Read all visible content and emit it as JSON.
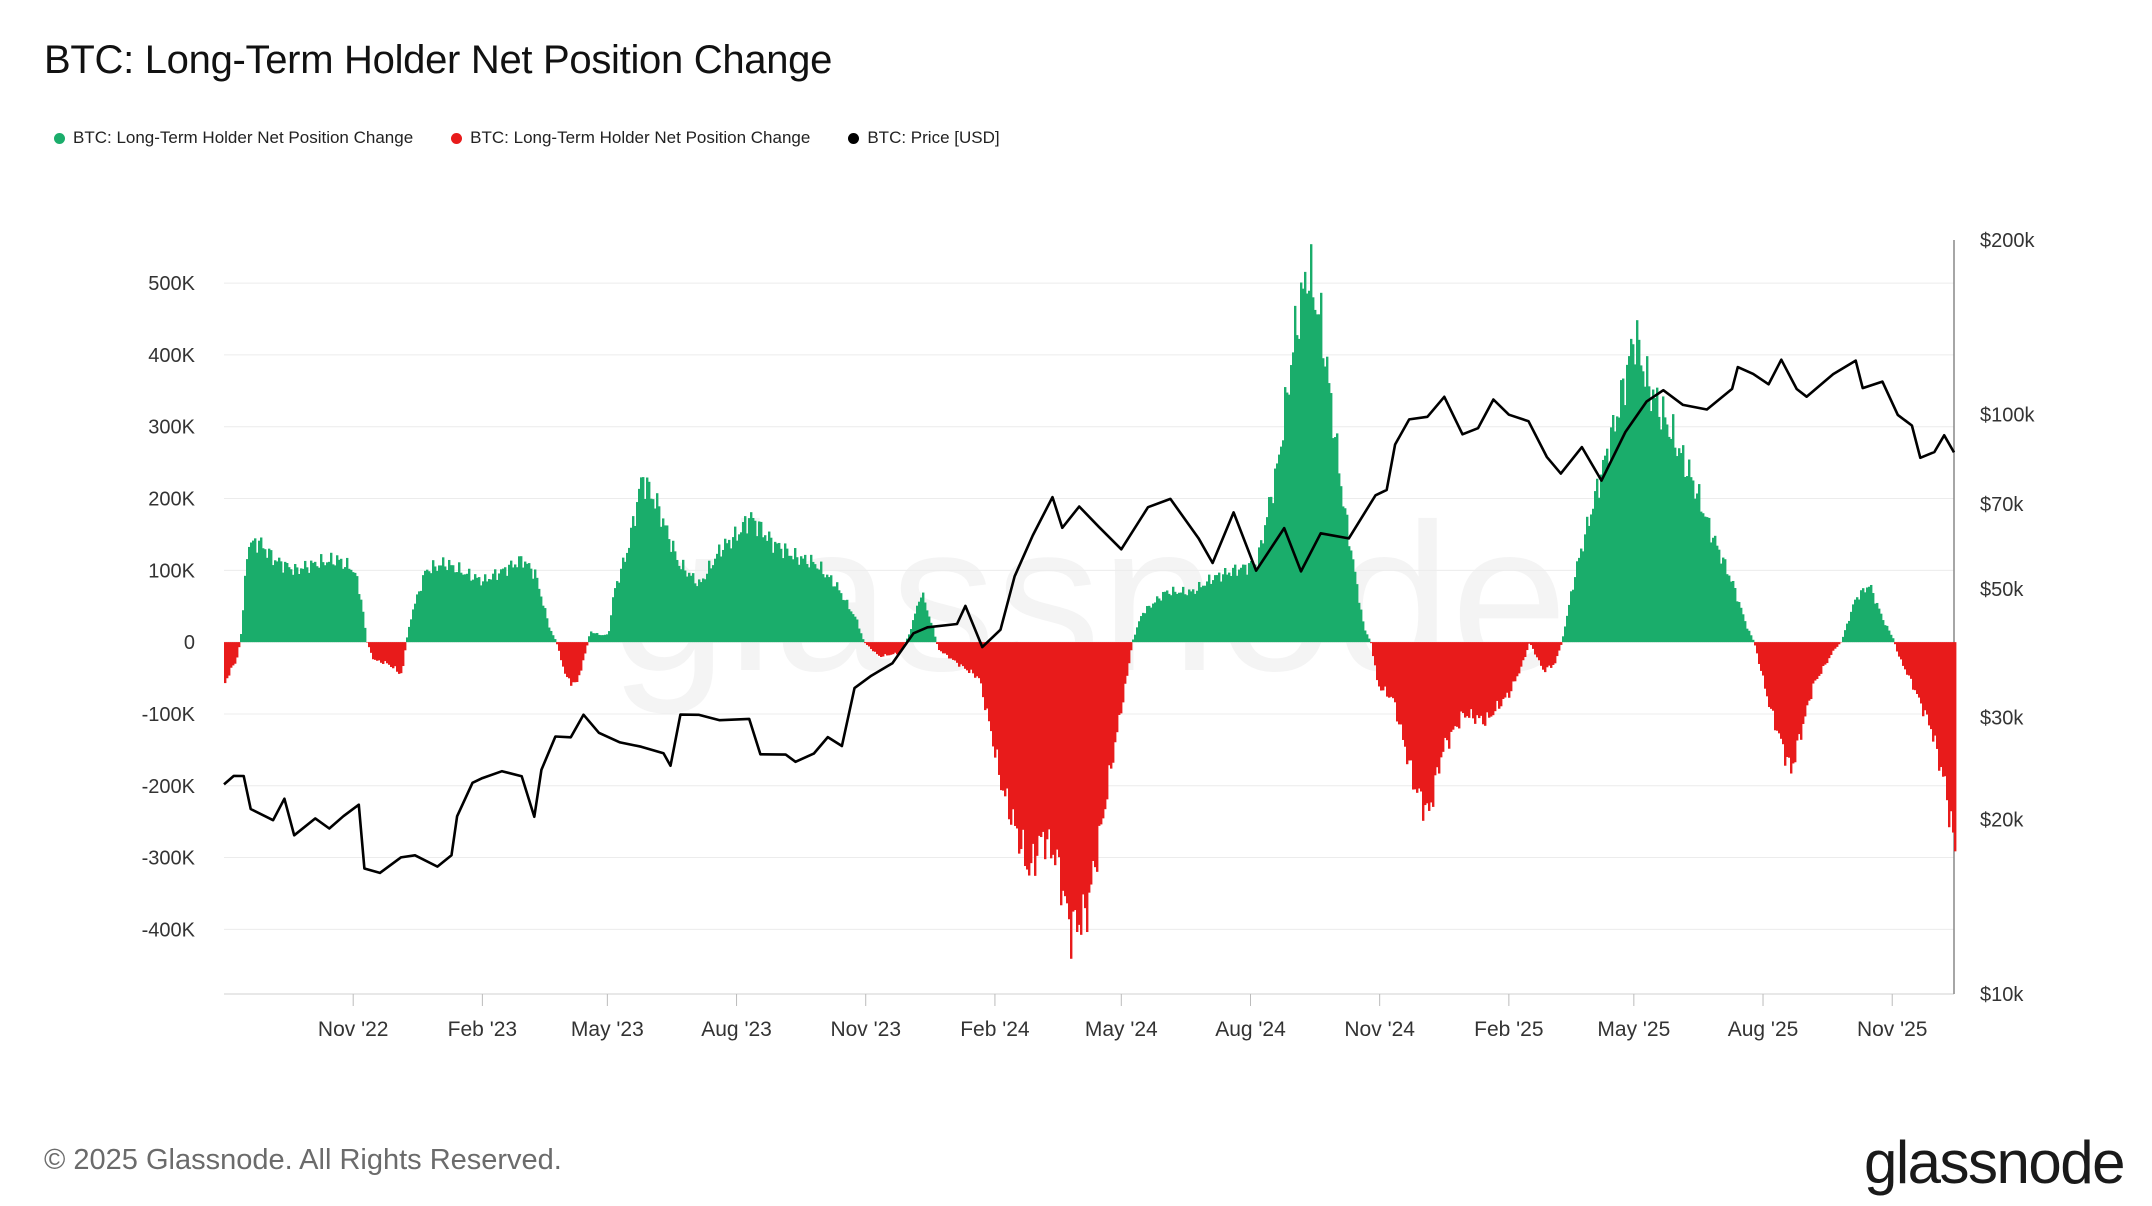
{
  "title": "BTC: Long-Term Holder Net Position Change",
  "legend": [
    {
      "label": "BTC: Long-Term Holder Net Position Change",
      "color": "#1aad6b"
    },
    {
      "label": "BTC: Long-Term Holder Net Position Change",
      "color": "#e81b1b"
    },
    {
      "label": "BTC: Price [USD]",
      "color": "#000000"
    }
  ],
  "footer": "© 2025 Glassnode. All Rights Reserved.",
  "brand": "glassnode",
  "watermark": "glassnode",
  "chart_data": {
    "type": "area",
    "title": "BTC: Long-Term Holder Net Position Change",
    "x_range": [
      "2022-08-01",
      "2025-12-15"
    ],
    "x_ticks": [
      {
        "label": "Nov '22",
        "date": "2022-11-01"
      },
      {
        "label": "Feb '23",
        "date": "2023-02-01"
      },
      {
        "label": "May '23",
        "date": "2023-05-01"
      },
      {
        "label": "Aug '23",
        "date": "2023-08-01"
      },
      {
        "label": "Nov '23",
        "date": "2023-11-01"
      },
      {
        "label": "Feb '24",
        "date": "2024-02-01"
      },
      {
        "label": "May '24",
        "date": "2024-05-01"
      },
      {
        "label": "Aug '24",
        "date": "2024-08-01"
      },
      {
        "label": "Nov '24",
        "date": "2024-11-01"
      },
      {
        "label": "Feb '25",
        "date": "2025-02-01"
      },
      {
        "label": "May '25",
        "date": "2025-05-01"
      },
      {
        "label": "Aug '25",
        "date": "2025-08-01"
      },
      {
        "label": "Nov '25",
        "date": "2025-11-01"
      }
    ],
    "y_left": {
      "ylim": [
        -490000,
        560000
      ],
      "ticks": [
        {
          "value": 500000,
          "label": "500K"
        },
        {
          "value": 400000,
          "label": "400K"
        },
        {
          "value": 300000,
          "label": "300K"
        },
        {
          "value": 200000,
          "label": "200K"
        },
        {
          "value": 100000,
          "label": "100K"
        },
        {
          "value": 0,
          "label": "0"
        },
        {
          "value": -100000,
          "label": "-100K"
        },
        {
          "value": -200000,
          "label": "-200K"
        },
        {
          "value": -300000,
          "label": "-300K"
        },
        {
          "value": -400000,
          "label": "-400K"
        }
      ]
    },
    "y_right": {
      "scale": "log",
      "ylim": [
        10000,
        200000
      ],
      "ticks": [
        {
          "value": 200000,
          "label": "$200k"
        },
        {
          "value": 100000,
          "label": "$100k"
        },
        {
          "value": 70000,
          "label": "$70k"
        },
        {
          "value": 50000,
          "label": "$50k"
        },
        {
          "value": 30000,
          "label": "$30k"
        },
        {
          "value": 20000,
          "label": "$20k"
        },
        {
          "value": 10000,
          "label": "$10k"
        }
      ]
    },
    "series": [
      {
        "name": "BTC: Long-Term Holder Net Position Change",
        "axis": "left",
        "points": [
          [
            "2022-08-01",
            -55000
          ],
          [
            "2022-08-05",
            -40000
          ],
          [
            "2022-08-10",
            -20000
          ],
          [
            "2022-08-13",
            20000
          ],
          [
            "2022-08-17",
            135000
          ],
          [
            "2022-08-25",
            140000
          ],
          [
            "2022-09-05",
            115000
          ],
          [
            "2022-09-20",
            100000
          ],
          [
            "2022-10-05",
            110000
          ],
          [
            "2022-10-20",
            115000
          ],
          [
            "2022-11-01",
            100000
          ],
          [
            "2022-11-06",
            60000
          ],
          [
            "2022-11-10",
            0
          ],
          [
            "2022-11-15",
            -25000
          ],
          [
            "2022-11-25",
            -30000
          ],
          [
            "2022-12-05",
            -45000
          ],
          [
            "2022-12-08",
            0
          ],
          [
            "2022-12-12",
            40000
          ],
          [
            "2022-12-22",
            100000
          ],
          [
            "2023-01-05",
            110000
          ],
          [
            "2023-01-20",
            95000
          ],
          [
            "2023-02-01",
            85000
          ],
          [
            "2023-02-15",
            100000
          ],
          [
            "2023-03-01",
            115000
          ],
          [
            "2023-03-10",
            95000
          ],
          [
            "2023-03-20",
            20000
          ],
          [
            "2023-03-25",
            0
          ],
          [
            "2023-04-01",
            -50000
          ],
          [
            "2023-04-08",
            -60000
          ],
          [
            "2023-04-14",
            -20000
          ],
          [
            "2023-04-18",
            15000
          ],
          [
            "2023-04-25",
            10000
          ],
          [
            "2023-05-01",
            10000
          ],
          [
            "2023-05-05",
            70000
          ],
          [
            "2023-05-15",
            130000
          ],
          [
            "2023-05-25",
            230000
          ],
          [
            "2023-06-05",
            190000
          ],
          [
            "2023-06-20",
            110000
          ],
          [
            "2023-07-05",
            80000
          ],
          [
            "2023-07-20",
            130000
          ],
          [
            "2023-08-01",
            150000
          ],
          [
            "2023-08-10",
            175000
          ],
          [
            "2023-08-25",
            140000
          ],
          [
            "2023-09-10",
            120000
          ],
          [
            "2023-09-25",
            110000
          ],
          [
            "2023-10-10",
            80000
          ],
          [
            "2023-10-25",
            30000
          ],
          [
            "2023-10-30",
            0
          ],
          [
            "2023-11-10",
            -20000
          ],
          [
            "2023-11-25",
            -15000
          ],
          [
            "2023-12-01",
            10000
          ],
          [
            "2023-12-10",
            70000
          ],
          [
            "2023-12-18",
            20000
          ],
          [
            "2023-12-22",
            -10000
          ],
          [
            "2024-01-05",
            -30000
          ],
          [
            "2024-01-20",
            -50000
          ],
          [
            "2024-01-28",
            -120000
          ],
          [
            "2024-02-05",
            -200000
          ],
          [
            "2024-02-15",
            -260000
          ],
          [
            "2024-02-25",
            -320000
          ],
          [
            "2024-03-05",
            -270000
          ],
          [
            "2024-03-15",
            -300000
          ],
          [
            "2024-03-25",
            -400000
          ],
          [
            "2024-04-05",
            -380000
          ],
          [
            "2024-04-15",
            -270000
          ],
          [
            "2024-04-25",
            -150000
          ],
          [
            "2024-05-05",
            -40000
          ],
          [
            "2024-05-08",
            0
          ],
          [
            "2024-05-15",
            40000
          ],
          [
            "2024-06-01",
            70000
          ],
          [
            "2024-06-20",
            70000
          ],
          [
            "2024-07-05",
            90000
          ],
          [
            "2024-07-20",
            100000
          ],
          [
            "2024-08-05",
            110000
          ],
          [
            "2024-08-20",
            250000
          ],
          [
            "2024-09-01",
            430000
          ],
          [
            "2024-09-10",
            520000
          ],
          [
            "2024-09-20",
            440000
          ],
          [
            "2024-10-05",
            200000
          ],
          [
            "2024-10-20",
            20000
          ],
          [
            "2024-10-25",
            0
          ],
          [
            "2024-10-30",
            -60000
          ],
          [
            "2024-11-10",
            -80000
          ],
          [
            "2024-11-25",
            -200000
          ],
          [
            "2024-12-05",
            -240000
          ],
          [
            "2024-12-15",
            -150000
          ],
          [
            "2024-12-30",
            -100000
          ],
          [
            "2025-01-15",
            -110000
          ],
          [
            "2025-02-01",
            -70000
          ],
          [
            "2025-02-10",
            -30000
          ],
          [
            "2025-02-15",
            0
          ],
          [
            "2025-02-25",
            -40000
          ],
          [
            "2025-03-05",
            -30000
          ],
          [
            "2025-03-10",
            0
          ],
          [
            "2025-03-20",
            100000
          ],
          [
            "2025-04-05",
            220000
          ],
          [
            "2025-04-20",
            330000
          ],
          [
            "2025-05-01",
            430000
          ],
          [
            "2025-05-10",
            360000
          ],
          [
            "2025-05-25",
            300000
          ],
          [
            "2025-06-10",
            230000
          ],
          [
            "2025-06-25",
            150000
          ],
          [
            "2025-07-10",
            80000
          ],
          [
            "2025-07-20",
            20000
          ],
          [
            "2025-07-25",
            0
          ],
          [
            "2025-08-05",
            -90000
          ],
          [
            "2025-08-20",
            -180000
          ],
          [
            "2025-09-05",
            -60000
          ],
          [
            "2025-09-20",
            -10000
          ],
          [
            "2025-09-25",
            0
          ],
          [
            "2025-10-05",
            60000
          ],
          [
            "2025-10-15",
            80000
          ],
          [
            "2025-10-25",
            30000
          ],
          [
            "2025-11-01",
            5000
          ],
          [
            "2025-11-05",
            -20000
          ],
          [
            "2025-11-15",
            -60000
          ],
          [
            "2025-11-28",
            -120000
          ],
          [
            "2025-12-08",
            -200000
          ],
          [
            "2025-12-15",
            -290000
          ]
        ]
      },
      {
        "name": "BTC: Price [USD]",
        "axis": "right",
        "points": [
          [
            "2022-08-01",
            23000
          ],
          [
            "2022-08-08",
            24000
          ],
          [
            "2022-08-15",
            23500
          ],
          [
            "2022-08-20",
            21000
          ],
          [
            "2022-09-05",
            20000
          ],
          [
            "2022-09-13",
            21500
          ],
          [
            "2022-09-20",
            19000
          ],
          [
            "2022-10-05",
            20000
          ],
          [
            "2022-10-15",
            19200
          ],
          [
            "2022-10-25",
            20500
          ],
          [
            "2022-11-05",
            21000
          ],
          [
            "2022-11-09",
            16500
          ],
          [
            "2022-11-20",
            16300
          ],
          [
            "2022-12-05",
            17000
          ],
          [
            "2022-12-15",
            17500
          ],
          [
            "2022-12-31",
            16600
          ],
          [
            "2023-01-10",
            17200
          ],
          [
            "2023-01-14",
            20500
          ],
          [
            "2023-01-25",
            23000
          ],
          [
            "2023-02-01",
            23500
          ],
          [
            "2023-02-15",
            24500
          ],
          [
            "2023-03-01",
            23500
          ],
          [
            "2023-03-10",
            20300
          ],
          [
            "2023-03-15",
            24500
          ],
          [
            "2023-03-25",
            27500
          ],
          [
            "2023-04-05",
            28000
          ],
          [
            "2023-04-14",
            30300
          ],
          [
            "2023-04-25",
            28000
          ],
          [
            "2023-05-10",
            27500
          ],
          [
            "2023-05-25",
            26500
          ],
          [
            "2023-06-10",
            26000
          ],
          [
            "2023-06-15",
            25000
          ],
          [
            "2023-06-22",
            30000
          ],
          [
            "2023-07-05",
            30500
          ],
          [
            "2023-07-20",
            29800
          ],
          [
            "2023-08-10",
            29500
          ],
          [
            "2023-08-18",
            26200
          ],
          [
            "2023-09-05",
            25800
          ],
          [
            "2023-09-12",
            25000
          ],
          [
            "2023-09-25",
            26300
          ],
          [
            "2023-10-05",
            27500
          ],
          [
            "2023-10-15",
            26800
          ],
          [
            "2023-10-24",
            34000
          ],
          [
            "2023-11-05",
            35000
          ],
          [
            "2023-11-20",
            37500
          ],
          [
            "2023-12-05",
            42000
          ],
          [
            "2023-12-15",
            42500
          ],
          [
            "2024-01-05",
            44000
          ],
          [
            "2024-01-11",
            46500
          ],
          [
            "2024-01-23",
            39500
          ],
          [
            "2024-02-05",
            43000
          ],
          [
            "2024-02-15",
            52000
          ],
          [
            "2024-02-28",
            62000
          ],
          [
            "2024-03-13",
            72500
          ],
          [
            "2024-03-20",
            63000
          ],
          [
            "2024-04-01",
            70000
          ],
          [
            "2024-04-15",
            64000
          ],
          [
            "2024-05-01",
            58000
          ],
          [
            "2024-05-20",
            70000
          ],
          [
            "2024-06-05",
            71000
          ],
          [
            "2024-06-25",
            61000
          ],
          [
            "2024-07-05",
            56000
          ],
          [
            "2024-07-20",
            67000
          ],
          [
            "2024-08-05",
            54000
          ],
          [
            "2024-08-25",
            64000
          ],
          [
            "2024-09-06",
            53000
          ],
          [
            "2024-09-20",
            63000
          ],
          [
            "2024-10-10",
            61000
          ],
          [
            "2024-10-29",
            72000
          ],
          [
            "2024-11-06",
            75000
          ],
          [
            "2024-11-12",
            88000
          ],
          [
            "2024-11-22",
            98000
          ],
          [
            "2024-12-05",
            100000
          ],
          [
            "2024-12-17",
            106000
          ],
          [
            "2024-12-30",
            93000
          ],
          [
            "2025-01-10",
            95000
          ],
          [
            "2025-01-21",
            105000
          ],
          [
            "2025-02-01",
            101000
          ],
          [
            "2025-02-15",
            97000
          ],
          [
            "2025-02-28",
            84000
          ],
          [
            "2025-03-10",
            80000
          ],
          [
            "2025-03-25",
            87000
          ],
          [
            "2025-04-08",
            77000
          ],
          [
            "2025-04-25",
            94000
          ],
          [
            "2025-05-10",
            104000
          ],
          [
            "2025-05-22",
            111000
          ],
          [
            "2025-06-05",
            104000
          ],
          [
            "2025-06-22",
            101000
          ],
          [
            "2025-07-10",
            112000
          ],
          [
            "2025-07-14",
            120000
          ],
          [
            "2025-07-25",
            117000
          ],
          [
            "2025-08-05",
            114000
          ],
          [
            "2025-08-14",
            123000
          ],
          [
            "2025-08-25",
            111000
          ],
          [
            "2025-09-01",
            108000
          ],
          [
            "2025-09-20",
            116000
          ],
          [
            "2025-10-06",
            125000
          ],
          [
            "2025-10-11",
            111000
          ],
          [
            "2025-10-25",
            113000
          ],
          [
            "2025-11-05",
            101000
          ],
          [
            "2025-11-15",
            95000
          ],
          [
            "2025-11-21",
            84000
          ],
          [
            "2025-12-01",
            87000
          ],
          [
            "2025-12-08",
            91000
          ],
          [
            "2025-12-15",
            86000
          ]
        ]
      }
    ]
  }
}
